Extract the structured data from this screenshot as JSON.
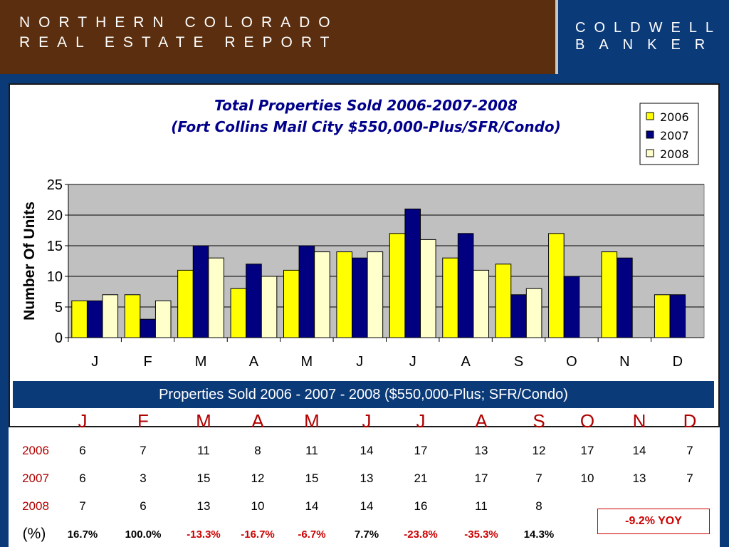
{
  "header": {
    "brand_line1": "NORTHERN COLORADO",
    "brand_line2": "REAL ESTATE REPORT",
    "logo_line1": "COLDWELL",
    "logo_line2": "BANKER"
  },
  "chart_data": {
    "type": "bar",
    "title": "Total Properties Sold     2006-2007-2008",
    "subtitle": "(Fort Collins Mail City $550,000-Plus/SFR/Condo)",
    "xlabel": "",
    "ylabel": "Number Of Units",
    "ylim": [
      0,
      25
    ],
    "yticks": [
      0,
      5,
      10,
      15,
      20,
      25
    ],
    "categories": [
      "J",
      "F",
      "M",
      "A",
      "M",
      "J",
      "J",
      "A",
      "S",
      "O",
      "N",
      "D"
    ],
    "series": [
      {
        "name": "2006",
        "color": "#ffff00",
        "values": [
          6,
          7,
          11,
          8,
          11,
          14,
          17,
          13,
          12,
          17,
          14,
          7
        ]
      },
      {
        "name": "2007",
        "color": "#000080",
        "values": [
          6,
          3,
          15,
          12,
          15,
          13,
          21,
          17,
          7,
          10,
          13,
          7
        ]
      },
      {
        "name": "2008",
        "color": "#ffffcc",
        "values": [
          7,
          6,
          13,
          10,
          14,
          14,
          16,
          11,
          8,
          null,
          null,
          null
        ]
      }
    ],
    "grid": true,
    "legend": "top-right",
    "plot_bg": "#c0c0c0"
  },
  "table": {
    "title": "Properties Sold    2006 - 2007 - 2008 ($550,000-Plus; SFR/Condo)",
    "months": [
      "J",
      "F",
      "M",
      "A",
      "M",
      "J",
      "J",
      "A",
      "S",
      "O",
      "N",
      "D"
    ],
    "rows": [
      {
        "label": "2006",
        "values": [
          "6",
          "7",
          "11",
          "8",
          "11",
          "14",
          "17",
          "13",
          "12",
          "17",
          "14",
          "7"
        ]
      },
      {
        "label": "2007",
        "values": [
          "6",
          "3",
          "15",
          "12",
          "15",
          "13",
          "21",
          "17",
          "7",
          "10",
          "13",
          "7"
        ]
      },
      {
        "label": "2008",
        "values": [
          "7",
          "6",
          "13",
          "10",
          "14",
          "14",
          "16",
          "11",
          "8",
          "",
          "",
          ""
        ]
      }
    ],
    "pct_label": "(%)",
    "pct_values": [
      "16.7%",
      "100.0%",
      "-13.3%",
      "-16.7%",
      "-6.7%",
      "7.7%",
      "-23.8%",
      "-35.3%",
      "14.3%"
    ],
    "yoy": "-9.2% YOY"
  }
}
